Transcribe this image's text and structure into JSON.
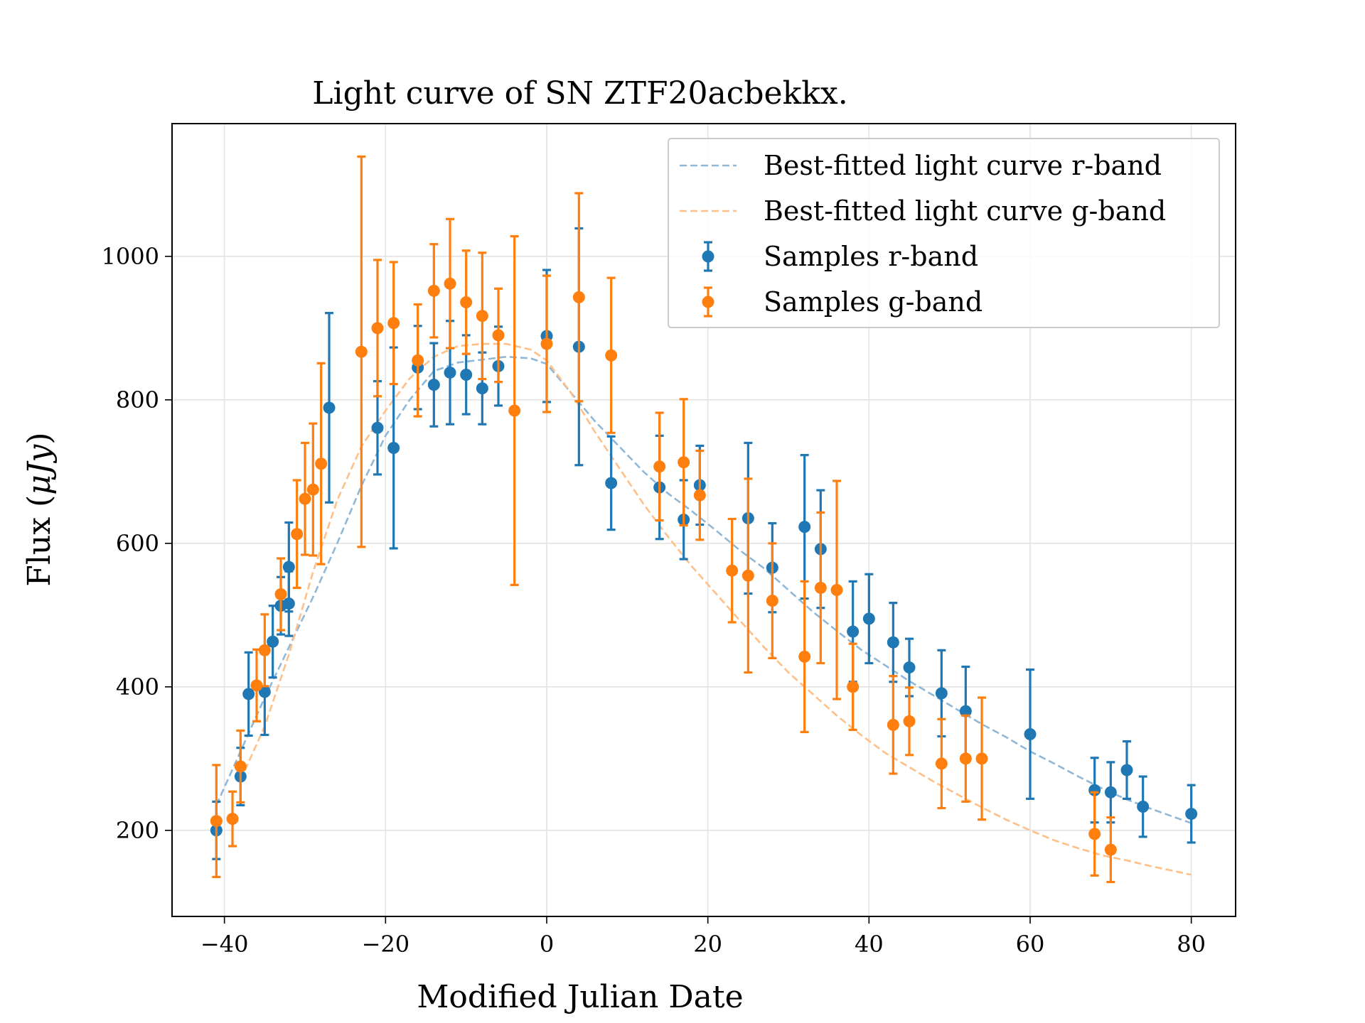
{
  "chart_data": {
    "type": "scatter",
    "title": "Light curve of SN ZTF20acbekkx.",
    "xlabel": "Modified Julian Date",
    "ylabel_text": "Flux (",
    "ylabel_unit": "μJy",
    "ylabel_close": ")",
    "xlim": [
      -46.5,
      85.5
    ],
    "ylim": [
      80,
      1185
    ],
    "xticks": [
      -40,
      -20,
      0,
      20,
      40,
      60,
      80
    ],
    "yticks": [
      200,
      400,
      600,
      800,
      1000
    ],
    "grid": true,
    "legend_position": "top-right",
    "colors": {
      "r_band": "#1f77b4",
      "g_band": "#ff7f0e",
      "r_fit": "#8fb8d8",
      "g_fit": "#ffbf87"
    },
    "legend": [
      {
        "label": "Best-fitted light curve r-band",
        "kind": "line",
        "color_key": "r_fit"
      },
      {
        "label": "Best-fitted light curve g-band",
        "kind": "line",
        "color_key": "g_fit"
      },
      {
        "label": "Samples r-band",
        "kind": "errorbar",
        "color_key": "r_band"
      },
      {
        "label": "Samples g-band",
        "kind": "errorbar",
        "color_key": "g_band"
      }
    ],
    "fit_curves": [
      {
        "band": "r",
        "color_key": "r_fit",
        "x": [
          -41,
          -38,
          -35,
          -32,
          -29,
          -26,
          -23,
          -20,
          -17,
          -14,
          -11,
          -8,
          -5,
          -2,
          0,
          3,
          6,
          9,
          12,
          15,
          18,
          21,
          24,
          27,
          30,
          33,
          36,
          39,
          42,
          45,
          48,
          51,
          54,
          57,
          60,
          63,
          66,
          69,
          72,
          75,
          78,
          80
        ],
        "y": [
          235,
          310,
          385,
          455,
          525,
          600,
          680,
          750,
          800,
          840,
          852,
          856,
          860,
          858,
          850,
          810,
          770,
          735,
          700,
          670,
          645,
          618,
          590,
          565,
          535,
          505,
          478,
          452,
          430,
          408,
          388,
          368,
          348,
          330,
          310,
          293,
          275,
          258,
          243,
          230,
          218,
          210
        ]
      },
      {
        "band": "g",
        "color_key": "g_fit",
        "x": [
          -38,
          -35,
          -32,
          -29,
          -26,
          -23,
          -20,
          -17,
          -14,
          -11,
          -8,
          -5,
          -2,
          0,
          3,
          6,
          9,
          12,
          15,
          18,
          21,
          24,
          27,
          30,
          33,
          36,
          39,
          42,
          45,
          48,
          51,
          54,
          57,
          60,
          63,
          66,
          69,
          72,
          75,
          78,
          80
        ],
        "y": [
          270,
          345,
          445,
          560,
          660,
          735,
          785,
          830,
          860,
          875,
          878,
          878,
          870,
          855,
          810,
          755,
          705,
          655,
          610,
          568,
          530,
          492,
          455,
          420,
          390,
          360,
          333,
          308,
          288,
          268,
          250,
          232,
          215,
          200,
          186,
          175,
          165,
          158,
          150,
          143,
          138
        ]
      }
    ],
    "series": [
      {
        "name": "Samples r-band",
        "color_key": "r_band",
        "x": [
          -41,
          -38,
          -37,
          -35,
          -34,
          -33,
          -32,
          -32,
          -27,
          -21,
          -19,
          -16,
          -14,
          -12,
          -10,
          -8,
          -6,
          0,
          4,
          8,
          14,
          17,
          19,
          25,
          28,
          32,
          34,
          38,
          40,
          43,
          45,
          49,
          52,
          60,
          68,
          70,
          72,
          74,
          80
        ],
        "y": [
          200,
          275,
          390,
          393,
          463,
          513,
          567,
          516,
          789,
          761,
          733,
          845,
          821,
          838,
          835,
          816,
          847,
          889,
          874,
          684,
          678,
          633,
          681,
          635,
          566,
          623,
          592,
          477,
          495,
          462,
          427,
          391,
          366,
          334,
          256,
          253,
          284,
          233,
          223
        ],
        "err": [
          40,
          40,
          58,
          60,
          50,
          40,
          62,
          45,
          132,
          65,
          140,
          58,
          58,
          72,
          55,
          50,
          55,
          92,
          165,
          65,
          72,
          55,
          55,
          105,
          62,
          100,
          82,
          70,
          62,
          55,
          40,
          60,
          62,
          90,
          45,
          42,
          40,
          42,
          40
        ]
      },
      {
        "name": "Samples g-band",
        "color_key": "g_band",
        "x": [
          -41,
          -39,
          -38,
          -36,
          -35,
          -33,
          -31,
          -30,
          -29,
          -28,
          -23,
          -21,
          -19,
          -16,
          -14,
          -12,
          -10,
          -8,
          -6,
          -4,
          0,
          4,
          8,
          14,
          17,
          19,
          23,
          25,
          28,
          32,
          34,
          36,
          38,
          43,
          45,
          49,
          52,
          54,
          68,
          70
        ],
        "y": [
          213,
          216,
          289,
          402,
          451,
          529,
          613,
          662,
          675,
          711,
          867,
          900,
          907,
          855,
          952,
          962,
          936,
          917,
          890,
          785,
          878,
          943,
          862,
          707,
          713,
          667,
          562,
          555,
          520,
          442,
          538,
          535,
          400,
          347,
          352,
          293,
          300,
          300,
          195,
          173
        ],
        "err": [
          78,
          38,
          50,
          50,
          50,
          50,
          75,
          78,
          92,
          140,
          272,
          95,
          85,
          78,
          65,
          90,
          72,
          88,
          65,
          243,
          95,
          145,
          108,
          75,
          88,
          62,
          72,
          135,
          80,
          105,
          105,
          152,
          60,
          68,
          47,
          62,
          60,
          85,
          58,
          45
        ]
      }
    ]
  }
}
